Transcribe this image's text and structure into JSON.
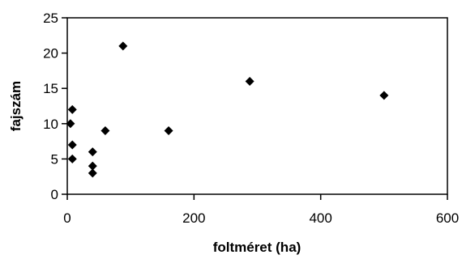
{
  "chart_data": {
    "type": "scatter",
    "title": "",
    "xlabel": "foltméret (ha)",
    "ylabel": "fajszám",
    "xlim": [
      0,
      600
    ],
    "ylim": [
      0,
      25
    ],
    "xticks": [
      0,
      200,
      400,
      600
    ],
    "yticks": [
      0,
      5,
      10,
      15,
      20,
      25
    ],
    "grid": false,
    "legend": "none",
    "marker": "diamond",
    "marker_color": "#000000",
    "series": [
      {
        "points": [
          {
            "x": 5,
            "y": 10
          },
          {
            "x": 8,
            "y": 12
          },
          {
            "x": 8,
            "y": 7
          },
          {
            "x": 8,
            "y": 5
          },
          {
            "x": 40,
            "y": 6
          },
          {
            "x": 40,
            "y": 4
          },
          {
            "x": 40,
            "y": 3
          },
          {
            "x": 60,
            "y": 9
          },
          {
            "x": 88,
            "y": 21
          },
          {
            "x": 160,
            "y": 9
          },
          {
            "x": 288,
            "y": 16
          },
          {
            "x": 500,
            "y": 14
          }
        ]
      }
    ]
  }
}
